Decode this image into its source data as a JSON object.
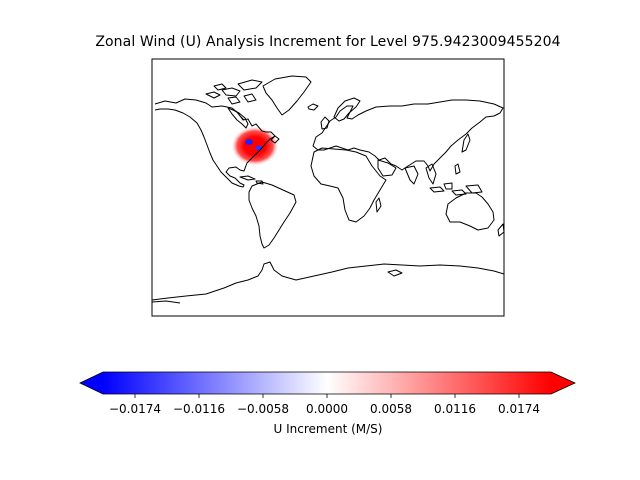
{
  "title": "Zonal Wind (U) Analysis Increment for Level 975.9423009455204",
  "map": {
    "projection": "PlateCarree",
    "extent_lon": [
      -180,
      180
    ],
    "extent_lat": [
      -90,
      90
    ],
    "coastline_color": "#000000"
  },
  "increment_field": {
    "center_lon": -75,
    "center_lat": 40,
    "dominant_sign": "positive",
    "negative_core_color": "#0000ff",
    "positive_color": "#ff0000"
  },
  "colorbar": {
    "label": "U Increment (M/S)",
    "colormap": "bwr",
    "vmin": -0.0203,
    "vmax": 0.0203,
    "extend": "both",
    "ticks": [
      -0.0174,
      -0.0116,
      -0.0058,
      0.0,
      0.0058,
      0.0116,
      0.0174
    ],
    "tick_labels": [
      "−0.0174",
      "−0.0116",
      "−0.0058",
      "0.0000",
      "0.0058",
      "0.0116",
      "0.0174"
    ]
  },
  "chart_data": {
    "type": "heatmap",
    "title": "Zonal Wind (U) Analysis Increment for Level 975.9423009455204",
    "colorbar_label": "U Increment (M/S)",
    "value_range": [
      -0.0203,
      0.0203
    ],
    "ticks": [
      -0.0174,
      -0.0116,
      -0.0058,
      0.0,
      0.0058,
      0.0116,
      0.0174
    ],
    "grid": false
  }
}
